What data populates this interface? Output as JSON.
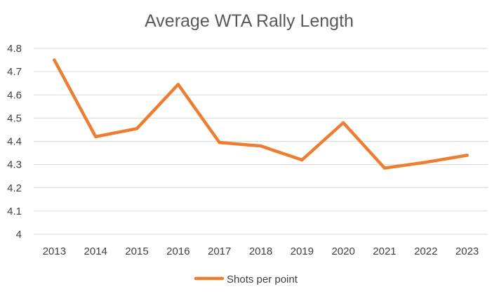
{
  "chart_data": {
    "type": "line",
    "title": "Average WTA Rally Length",
    "xlabel": "",
    "ylabel": "",
    "categories": [
      "2013",
      "2014",
      "2015",
      "2016",
      "2017",
      "2018",
      "2019",
      "2020",
      "2021",
      "2022",
      "2023"
    ],
    "series": [
      {
        "name": "Shots per point",
        "color": "#ed7d31",
        "values": [
          4.75,
          4.42,
          4.455,
          4.645,
          4.395,
          4.38,
          4.32,
          4.48,
          4.285,
          4.31,
          4.34
        ]
      }
    ],
    "ylim": [
      4,
      4.8
    ],
    "yticks": [
      "4",
      "4.1",
      "4.2",
      "4.3",
      "4.4",
      "4.5",
      "4.6",
      "4.7",
      "4.8"
    ],
    "grid": true,
    "legend_position": "bottom"
  }
}
